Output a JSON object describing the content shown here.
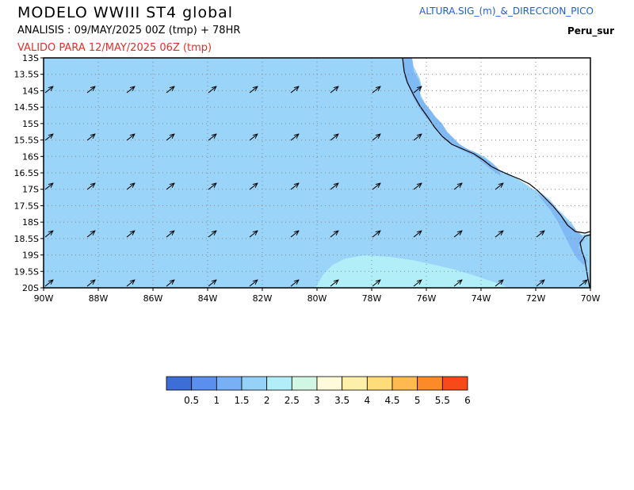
{
  "header": {
    "title": "MODELO WWIII ST4 global",
    "analysis": "ANALISIS : 09/MAY/2025 00Z  (tmp) + 78HR",
    "valid": "VALIDO PARA  12/MAY/2025 06Z  (tmp)",
    "variable": "ALTURA.SIG_(m)_&_DIRECCION_PICO",
    "region": "Peru_sur"
  },
  "map": {
    "lon_labels": [
      "90W",
      "88W",
      "86W",
      "84W",
      "82W",
      "80W",
      "78W",
      "76W",
      "74W",
      "72W",
      "70W"
    ],
    "lat_labels": [
      "13S",
      "13.5S",
      "14S",
      "14.5S",
      "15S",
      "15.5S",
      "16S",
      "16.5S",
      "17S",
      "17.5S",
      "18S",
      "18.5S",
      "19S",
      "19.5S",
      "20S"
    ],
    "colors": {
      "ocean_1_5_2": "#9ad4f8",
      "ocean_1_1_5": "#7fbaf5",
      "ocean_2_2_5": "#b2eef8",
      "land": "#ffffff",
      "grid": "#888888"
    },
    "arrow_icon": "wave-direction-arrow"
  },
  "colorbar": {
    "colors": [
      "#3d6ed8",
      "#5a8ff0",
      "#78b0f8",
      "#96d2f8",
      "#b2eef8",
      "#d2f6e4",
      "#fffada",
      "#fef0a8",
      "#fedd78",
      "#feba50",
      "#fc8a28",
      "#f84a18"
    ],
    "labels": [
      "0.5",
      "1",
      "1.5",
      "2",
      "2.5",
      "3",
      "3.5",
      "4",
      "4.5",
      "5",
      "5.5",
      "6"
    ]
  }
}
